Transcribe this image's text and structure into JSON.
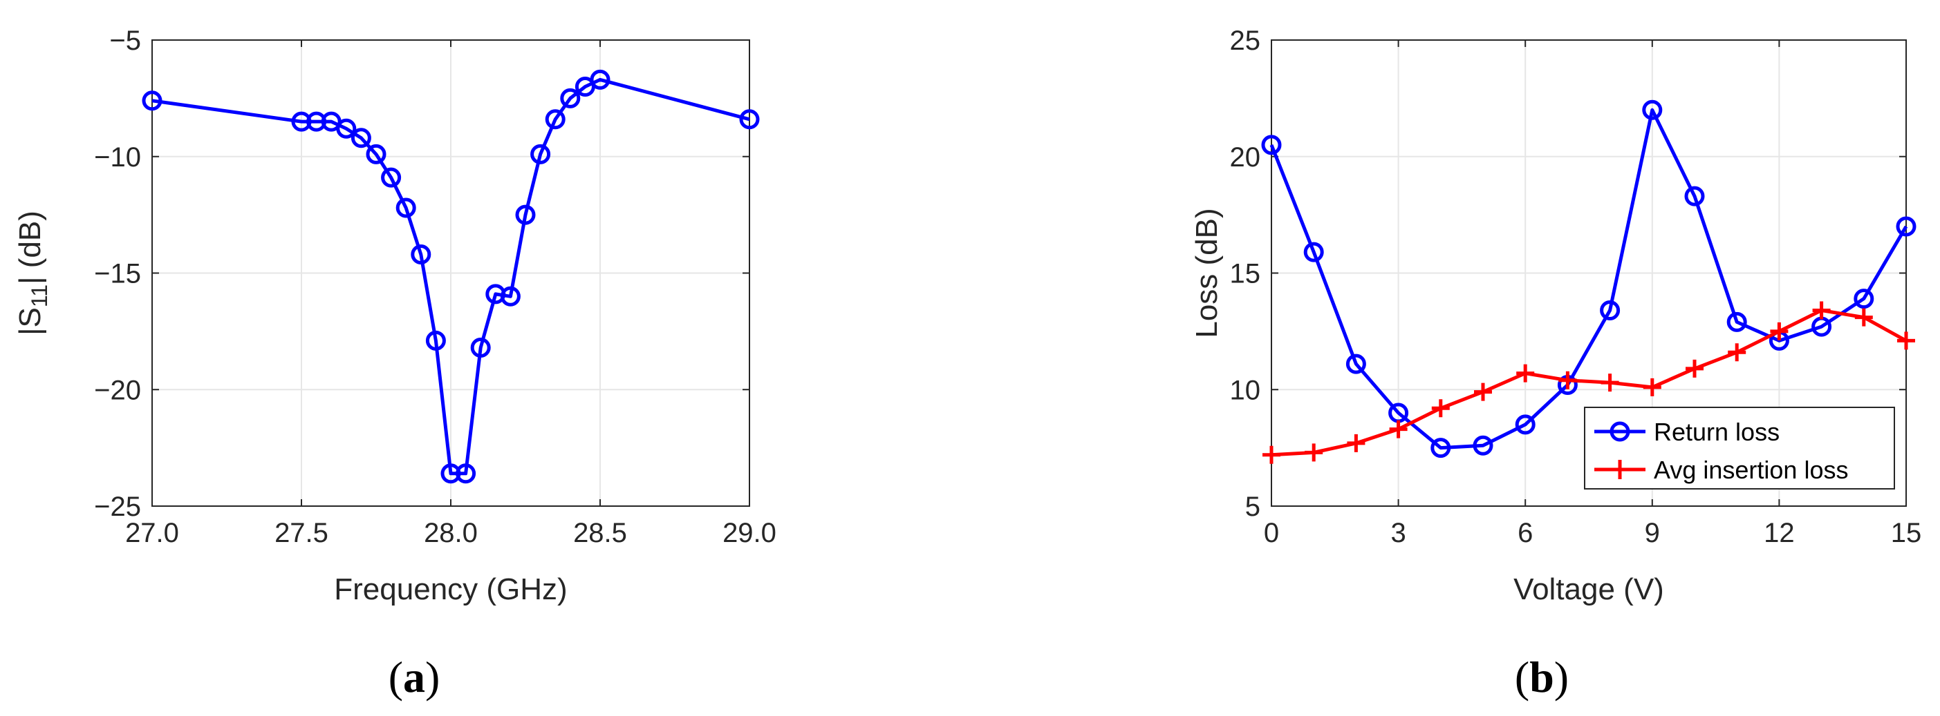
{
  "colors": {
    "blue": "#0000ff",
    "red": "#ff0000",
    "grid": "#e6e6e6",
    "axis": "#262626"
  },
  "panels": {
    "a": {
      "label_open": "(",
      "label_letter": "a",
      "label_close": ")"
    },
    "b": {
      "label_open": "(",
      "label_letter": "b",
      "label_close": ")"
    }
  },
  "chart_data": [
    {
      "type": "line",
      "marker": "circle",
      "xlabel": "Frequency (GHz)",
      "ylabel_prefix": "|S",
      "ylabel_sub": "11",
      "ylabel_suffix": "| (dB)",
      "xlim": [
        27.0,
        29.0
      ],
      "ylim": [
        -25,
        -5
      ],
      "xticks": [
        27.0,
        27.5,
        28.0,
        28.5,
        29.0
      ],
      "xtick_labels": [
        "27.0",
        "27.5",
        "28.0",
        "28.5",
        "29.0"
      ],
      "yticks": [
        -25,
        -20,
        -15,
        -10,
        -5
      ],
      "ytick_labels": [
        "−25",
        "−20",
        "−15",
        "−10",
        "−5"
      ],
      "grid": true,
      "series": [
        {
          "color": "#0000ff",
          "x": [
            27.0,
            27.5,
            27.55,
            27.6,
            27.65,
            27.7,
            27.75,
            27.8,
            27.85,
            27.9,
            27.95,
            28.0,
            28.05,
            28.1,
            28.15,
            28.2,
            28.25,
            28.3,
            28.35,
            28.4,
            28.45,
            28.5,
            29.0
          ],
          "y": [
            -7.6,
            -8.5,
            -8.5,
            -8.5,
            -8.8,
            -9.2,
            -9.9,
            -10.9,
            -12.2,
            -14.2,
            -17.9,
            -23.6,
            -23.6,
            -18.2,
            -15.9,
            -16.0,
            -12.5,
            -9.9,
            -8.4,
            -7.5,
            -7.0,
            -6.7,
            -8.4
          ]
        }
      ]
    },
    {
      "type": "line",
      "xlabel": "Voltage (V)",
      "ylabel": "Loss (dB)",
      "xlim": [
        0,
        15
      ],
      "ylim": [
        5,
        25
      ],
      "xticks": [
        0,
        3,
        6,
        9,
        12,
        15
      ],
      "xtick_labels": [
        "0",
        "3",
        "6",
        "9",
        "12",
        "15"
      ],
      "yticks": [
        5,
        10,
        15,
        20,
        25
      ],
      "ytick_labels": [
        "5",
        "10",
        "15",
        "20",
        "25"
      ],
      "grid": true,
      "legend_position": "bottom-right",
      "series": [
        {
          "name": "Return loss",
          "color": "#0000ff",
          "marker": "circle",
          "x": [
            0,
            1,
            2,
            3,
            4,
            5,
            6,
            7,
            8,
            9,
            10,
            11,
            12,
            13,
            14,
            15
          ],
          "y": [
            20.5,
            15.9,
            11.1,
            9.0,
            7.5,
            7.6,
            8.5,
            10.2,
            13.4,
            22.0,
            18.3,
            12.9,
            12.1,
            12.7,
            13.9,
            17.0
          ]
        },
        {
          "name": "Avg insertion loss",
          "color": "#ff0000",
          "marker": "plus",
          "x": [
            0,
            1,
            2,
            3,
            4,
            5,
            6,
            7,
            8,
            9,
            10,
            11,
            12,
            13,
            14,
            15
          ],
          "y": [
            7.2,
            7.3,
            7.7,
            8.3,
            9.2,
            9.9,
            10.7,
            10.4,
            10.3,
            10.1,
            10.9,
            11.6,
            12.5,
            13.4,
            13.1,
            12.1
          ]
        }
      ]
    }
  ]
}
